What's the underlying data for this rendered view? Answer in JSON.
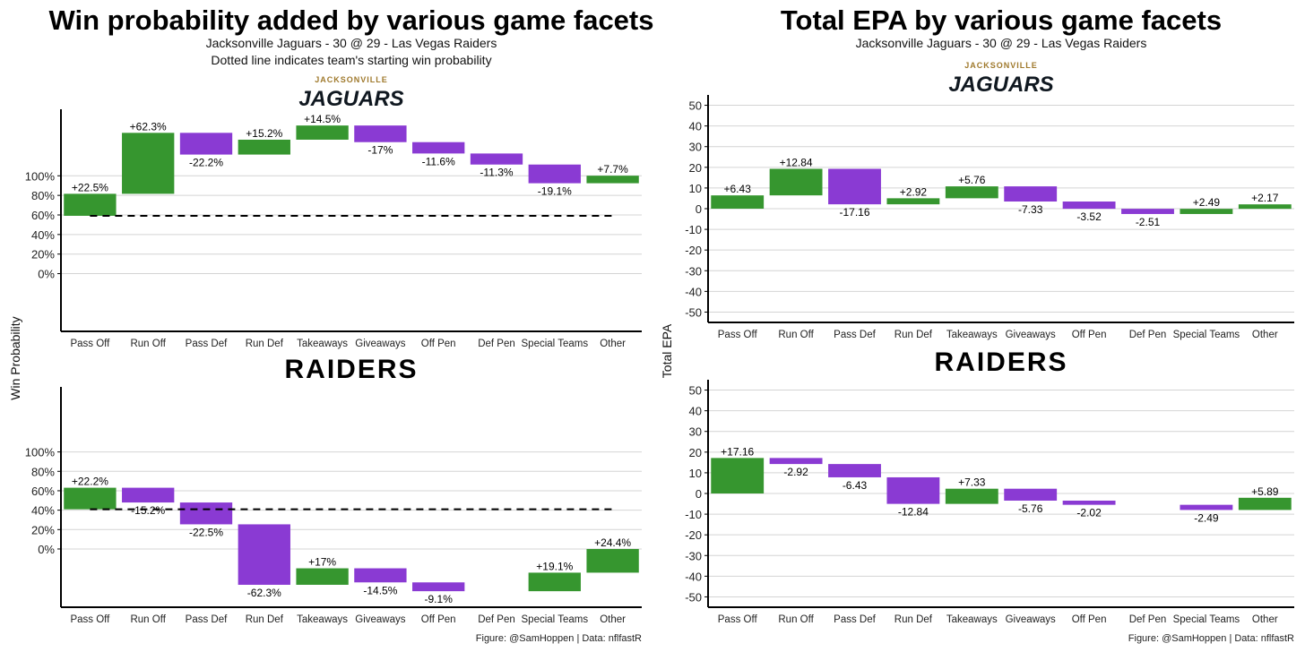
{
  "colors": {
    "positive": "#36962f",
    "negative": "#8a3ad3",
    "grid": "#d4d4d4",
    "dashed": "#000000"
  },
  "left": {
    "title": "Win probability added by various game facets",
    "subtitle": "Jacksonville Jaguars - 30 @ 29 - Las Vegas Raiders",
    "subtitle2": "Dotted line indicates team's starting win probability",
    "ylabel": "Win Probability",
    "caption": "Figure: @SamHoppen | Data: nflfastR"
  },
  "right": {
    "title": "Total EPA by various game facets",
    "subtitle": "Jacksonville Jaguars - 30 @ 29 - Las Vegas Raiders",
    "ylabel": "Total EPA",
    "caption": "Figure: @SamHoppen | Data: nflfastR"
  },
  "logos": {
    "jaguars_top": "JACKSONVILLE",
    "jaguars": "JAGUARS",
    "raiders": "RAIDERS"
  },
  "chart_data": [
    {
      "type": "bar",
      "subtype": "waterfall",
      "team": "Jaguars",
      "metric": "Win probability added",
      "categories": [
        "Pass Off",
        "Run Off",
        "Pass Def",
        "Run Def",
        "Takeaways",
        "Giveaways",
        "Off Pen",
        "Def Pen",
        "Special Teams",
        "Other"
      ],
      "start": 59.1,
      "values": [
        22.5,
        62.3,
        -22.2,
        15.2,
        14.5,
        -17,
        -11.6,
        -11.3,
        -19.1,
        7.7
      ],
      "labels": [
        "+22.5%",
        "+62.3%",
        "-22.2%",
        "+15.2%",
        "+14.5%",
        "-17%",
        "-11.6%",
        "-11.3%",
        "-19.1%",
        "+7.7%"
      ],
      "yticks": [
        0,
        20,
        40,
        60,
        80,
        100
      ],
      "ytick_labels": [
        "0%",
        "20%",
        "40%",
        "60%",
        "80%",
        "100%"
      ],
      "ylim": [
        -59,
        168
      ],
      "dashed_line": 59.1
    },
    {
      "type": "bar",
      "subtype": "waterfall",
      "team": "Raiders",
      "metric": "Win probability added",
      "categories": [
        "Pass Off",
        "Run Off",
        "Pass Def",
        "Run Def",
        "Takeaways",
        "Giveaways",
        "Off Pen",
        "Def Pen",
        "Special Teams",
        "Other"
      ],
      "start": 40.9,
      "values": [
        22.2,
        -15.2,
        -22.5,
        -62.3,
        17,
        -14.5,
        -9.1,
        0,
        19.1,
        24.4
      ],
      "labels": [
        "+22.2%",
        "-15.2%",
        "-22.5%",
        "-62.3%",
        "+17%",
        "-14.5%",
        "-9.1%",
        "",
        "+19.1%",
        "+24.4%"
      ],
      "yticks": [
        0,
        20,
        40,
        60,
        80,
        100
      ],
      "ytick_labels": [
        "0%",
        "20%",
        "40%",
        "60%",
        "80%",
        "100%"
      ],
      "ylim": [
        -60,
        167
      ],
      "dashed_line": 40.9
    },
    {
      "type": "bar",
      "subtype": "waterfall",
      "team": "Jaguars",
      "metric": "Total EPA",
      "categories": [
        "Pass Off",
        "Run Off",
        "Pass Def",
        "Run Def",
        "Takeaways",
        "Giveaways",
        "Off Pen",
        "Def Pen",
        "Special Teams",
        "Other"
      ],
      "start": 0,
      "values": [
        6.43,
        12.84,
        -17.16,
        2.92,
        5.76,
        -7.33,
        -3.52,
        -2.51,
        2.49,
        2.17
      ],
      "labels": [
        "+6.43",
        "+12.84",
        "-17.16",
        "+2.92",
        "+5.76",
        "-7.33",
        "-3.52",
        "-2.51",
        "+2.49",
        "+2.17"
      ],
      "yticks": [
        -50,
        -40,
        -30,
        -20,
        -10,
        0,
        10,
        20,
        30,
        40,
        50
      ],
      "ytick_labels": [
        "-50",
        "-40",
        "-30",
        "-20",
        "-10",
        "0",
        "10",
        "20",
        "30",
        "40",
        "50"
      ],
      "ylim": [
        -55,
        55
      ]
    },
    {
      "type": "bar",
      "subtype": "waterfall",
      "team": "Raiders",
      "metric": "Total EPA",
      "categories": [
        "Pass Off",
        "Run Off",
        "Pass Def",
        "Run Def",
        "Takeaways",
        "Giveaways",
        "Off Pen",
        "Def Pen",
        "Special Teams",
        "Other"
      ],
      "start": 0,
      "values": [
        17.16,
        -2.92,
        -6.43,
        -12.84,
        7.33,
        -5.76,
        -2.02,
        0,
        -2.49,
        5.89
      ],
      "labels": [
        "+17.16",
        "-2.92",
        "-6.43",
        "-12.84",
        "+7.33",
        "-5.76",
        "-2.02",
        "",
        "-2.49",
        "+5.89"
      ],
      "yticks": [
        -50,
        -40,
        -30,
        -20,
        -10,
        0,
        10,
        20,
        30,
        40,
        50
      ],
      "ytick_labels": [
        "-50",
        "-40",
        "-30",
        "-20",
        "-10",
        "0",
        "10",
        "20",
        "30",
        "40",
        "50"
      ],
      "ylim": [
        -55,
        55
      ]
    }
  ]
}
